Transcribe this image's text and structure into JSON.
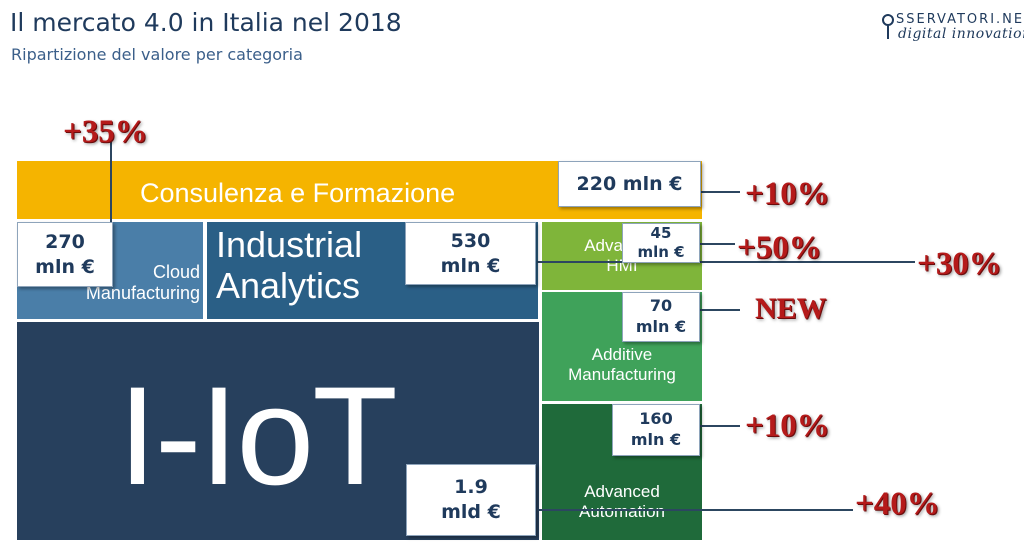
{
  "title": "Il mercato 4.0 in Italia nel 2018",
  "subtitle": "Ripartizione del valore per categoria",
  "logo": {
    "line1": "SSERVATORI.NET",
    "line2": "digital innovation"
  },
  "colors": {
    "consulenza": "#f5b400",
    "cloud": "#4a7ea8",
    "industrial_analytics": "#2a5f86",
    "iiot": "#27405d",
    "hmi": "#7fb53a",
    "additive": "#3fa25a",
    "automation": "#1f6a3a",
    "growth": "#b51a1a",
    "value_text": "#1f3a5c"
  },
  "chart_data": {
    "type": "treemap",
    "title": "Il mercato 4.0 in Italia nel 2018",
    "subtitle": "Ripartizione del valore per categoria",
    "items": [
      {
        "key": "consulenza",
        "name": "Consulenza e Formazione",
        "value_label": "220 mln €",
        "value_mln": 220,
        "growth": "+10%"
      },
      {
        "key": "cloud",
        "name": "Cloud\nManufacturing",
        "value_label": "270\nmln €",
        "value_mln": 270,
        "growth": "+35%"
      },
      {
        "key": "industrial_analytics",
        "name": "Industrial\nAnalytics",
        "value_label": "530\nmln €",
        "value_mln": 530,
        "growth": "+30%"
      },
      {
        "key": "iiot",
        "name": "I-IoT",
        "value_label": "1.9\nmld €",
        "value_mln": 1900,
        "growth": "+40%"
      },
      {
        "key": "hmi",
        "name": "Advanced\nHMI",
        "value_label": "45\nmln €",
        "value_mln": 45,
        "growth": "+50%"
      },
      {
        "key": "additive",
        "name": "Additive\nManufacturing",
        "value_label": "70\nmln €",
        "value_mln": 70,
        "growth": "NEW"
      },
      {
        "key": "automation",
        "name": "Advanced\nAutomation",
        "value_label": "160\nmln €",
        "value_mln": 160,
        "growth": "+10%"
      }
    ]
  }
}
